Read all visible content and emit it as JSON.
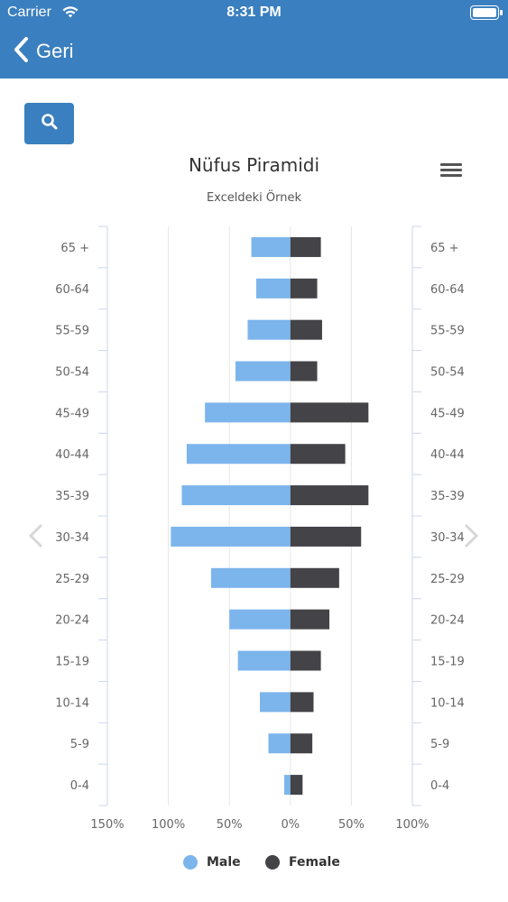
{
  "status_bar": {
    "carrier": "Carrier",
    "time": "8:31 PM"
  },
  "nav": {
    "back_label": "Geri"
  },
  "icons": {
    "search": "search-icon",
    "menu": "menu-icon",
    "back": "chevron-left-icon",
    "prev": "chevron-left-icon",
    "next": "chevron-right-icon"
  },
  "colors": {
    "header": "#3a7fbf",
    "male": "#7cb5ec",
    "female": "#434348"
  },
  "chart_data": {
    "type": "bar",
    "title": "Nüfus Piramidi",
    "subtitle": "Exceldeki Örnek",
    "categories": [
      "65 +",
      "60-64",
      "55-59",
      "50-54",
      "45-49",
      "40-44",
      "35-39",
      "30-34",
      "25-29",
      "20-24",
      "15-19",
      "10-14",
      "5-9",
      "0-4"
    ],
    "series": [
      {
        "name": "Male",
        "color": "#7cb5ec",
        "values": [
          -32,
          -28,
          -35,
          -45,
          -70,
          -85,
          -89,
          -98,
          -65,
          -50,
          -43,
          -25,
          -18,
          -5
        ]
      },
      {
        "name": "Female",
        "color": "#434348",
        "values": [
          25,
          22,
          26,
          22,
          64,
          45,
          64,
          58,
          40,
          32,
          25,
          19,
          18,
          10
        ]
      }
    ],
    "xlim": [
      -150,
      100
    ],
    "x_ticks": [
      "150%",
      "100%",
      "50%",
      "0%",
      "50%",
      "100%"
    ],
    "legend": "bottom-center"
  }
}
